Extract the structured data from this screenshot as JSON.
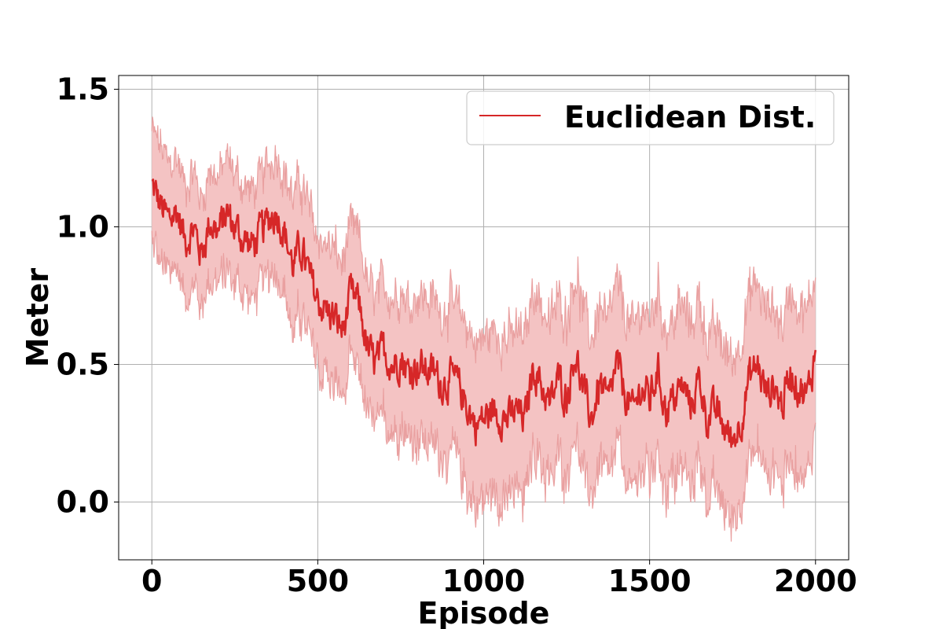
{
  "chart_data": {
    "type": "line",
    "title": "",
    "xlabel": "Episode",
    "ylabel": "Meter",
    "xlim": [
      -100,
      2100
    ],
    "ylim": [
      -0.21,
      1.55
    ],
    "xticks": [
      0,
      500,
      1000,
      1500,
      2000
    ],
    "xtick_labels": [
      "0",
      "500",
      "1000",
      "1500",
      "2000"
    ],
    "yticks": [
      0.0,
      0.5,
      1.0,
      1.5
    ],
    "ytick_labels": [
      "0.0",
      "0.5",
      "1.0",
      "1.5"
    ],
    "grid": true,
    "legend_position": "top-right",
    "series": [
      {
        "name": "Euclidean Dist.",
        "color": "#d62728",
        "band_color": "#f4c3c3",
        "band": "mean ± spread (shaded)",
        "x": [
          0,
          25,
          50,
          75,
          100,
          125,
          150,
          175,
          200,
          225,
          250,
          275,
          300,
          325,
          350,
          375,
          400,
          425,
          450,
          475,
          500,
          525,
          550,
          575,
          600,
          625,
          650,
          675,
          700,
          725,
          750,
          775,
          800,
          825,
          850,
          875,
          900,
          925,
          950,
          975,
          1000,
          1025,
          1050,
          1075,
          1100,
          1125,
          1150,
          1175,
          1200,
          1225,
          1250,
          1275,
          1300,
          1325,
          1350,
          1375,
          1400,
          1425,
          1450,
          1475,
          1500,
          1525,
          1550,
          1575,
          1600,
          1625,
          1650,
          1675,
          1700,
          1725,
          1750,
          1775,
          1800,
          1825,
          1850,
          1875,
          1900,
          1925,
          1950,
          1975,
          2000
        ],
        "y": [
          1.15,
          1.08,
          1.02,
          1.06,
          0.95,
          1.0,
          0.9,
          1.02,
          0.98,
          1.05,
          1.0,
          0.96,
          0.93,
          0.97,
          1.02,
          1.06,
          0.98,
          0.86,
          0.92,
          0.82,
          0.73,
          0.7,
          0.67,
          0.62,
          0.75,
          0.72,
          0.55,
          0.5,
          0.55,
          0.5,
          0.53,
          0.47,
          0.5,
          0.48,
          0.47,
          0.43,
          0.45,
          0.42,
          0.35,
          0.28,
          0.3,
          0.33,
          0.32,
          0.3,
          0.33,
          0.3,
          0.5,
          0.42,
          0.35,
          0.45,
          0.38,
          0.55,
          0.4,
          0.3,
          0.43,
          0.35,
          0.5,
          0.4,
          0.32,
          0.42,
          0.37,
          0.48,
          0.33,
          0.38,
          0.42,
          0.35,
          0.45,
          0.3,
          0.33,
          0.27,
          0.22,
          0.3,
          0.45,
          0.5,
          0.4,
          0.42,
          0.35,
          0.48,
          0.42,
          0.38,
          0.55
        ],
        "spread": [
          0.2,
          0.22,
          0.21,
          0.2,
          0.2,
          0.21,
          0.2,
          0.2,
          0.2,
          0.2,
          0.2,
          0.2,
          0.2,
          0.2,
          0.21,
          0.22,
          0.22,
          0.25,
          0.25,
          0.25,
          0.24,
          0.24,
          0.25,
          0.25,
          0.25,
          0.25,
          0.24,
          0.25,
          0.25,
          0.25,
          0.25,
          0.26,
          0.27,
          0.27,
          0.27,
          0.27,
          0.28,
          0.28,
          0.3,
          0.3,
          0.3,
          0.3,
          0.3,
          0.3,
          0.3,
          0.3,
          0.3,
          0.3,
          0.3,
          0.3,
          0.3,
          0.3,
          0.3,
          0.3,
          0.3,
          0.3,
          0.3,
          0.3,
          0.3,
          0.3,
          0.3,
          0.3,
          0.3,
          0.3,
          0.3,
          0.3,
          0.3,
          0.3,
          0.3,
          0.3,
          0.3,
          0.3,
          0.3,
          0.3,
          0.3,
          0.3,
          0.3,
          0.3,
          0.3,
          0.3,
          0.3
        ]
      }
    ]
  }
}
